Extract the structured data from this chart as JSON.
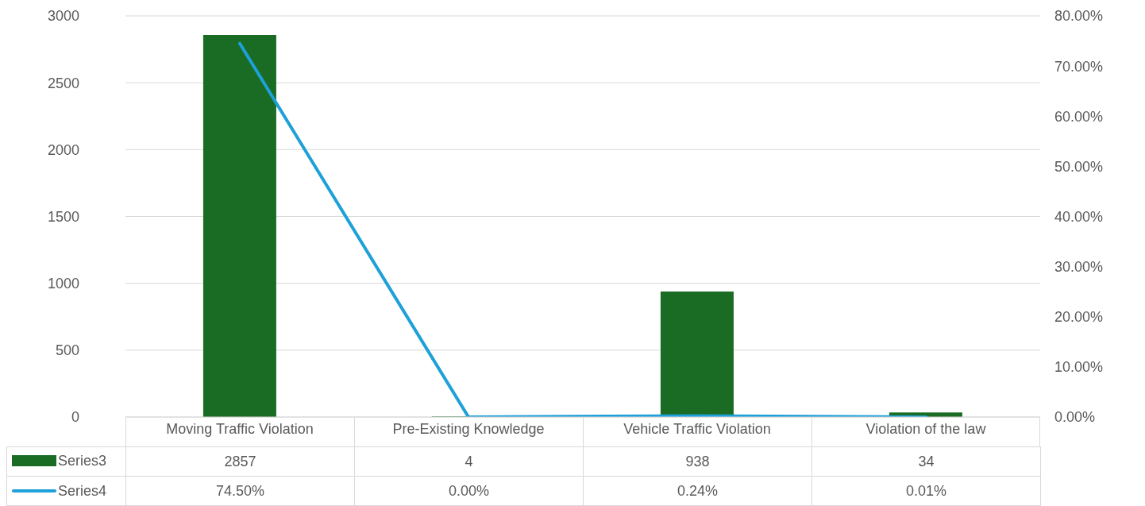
{
  "chart_data": {
    "type": "bar",
    "categories": [
      "Moving Traffic Violation",
      "Pre-Existing Knowledge",
      "Vehicle Traffic Violation",
      "Violation of the law"
    ],
    "series": [
      {
        "name": "Series3",
        "color": "#1a6b24",
        "values": [
          2857,
          4,
          938,
          34
        ],
        "value_labels": [
          "2857",
          "4",
          "938",
          "34"
        ]
      },
      {
        "name": "Series4",
        "type": "line",
        "axis": "y2",
        "color": "#1ea0d8",
        "values": [
          74.5,
          0,
          0.24,
          0.01
        ],
        "value_labels": [
          "74.50%",
          "0.00%",
          "0.24%",
          "0.01%"
        ]
      }
    ],
    "ylim": [
      0,
      3000
    ],
    "yticks": [
      0,
      500,
      1000,
      1500,
      2000,
      2500,
      3000
    ],
    "y2lim": [
      0,
      80
    ],
    "y2ticks": [
      {
        "value": 0,
        "label": "0.00%"
      },
      {
        "value": 10,
        "label": "10.00%"
      },
      {
        "value": 20,
        "label": "20.00%"
      },
      {
        "value": 30,
        "label": "30.00%"
      },
      {
        "value": 40,
        "label": "40.00%"
      },
      {
        "value": 50,
        "label": "50.00%"
      },
      {
        "value": 60,
        "label": "60.00%"
      },
      {
        "value": 70,
        "label": "70.00%"
      },
      {
        "value": 80,
        "label": "80.00%"
      }
    ],
    "grid": "y",
    "legend": "bottom",
    "marker": "none",
    "line_style": "solid"
  }
}
